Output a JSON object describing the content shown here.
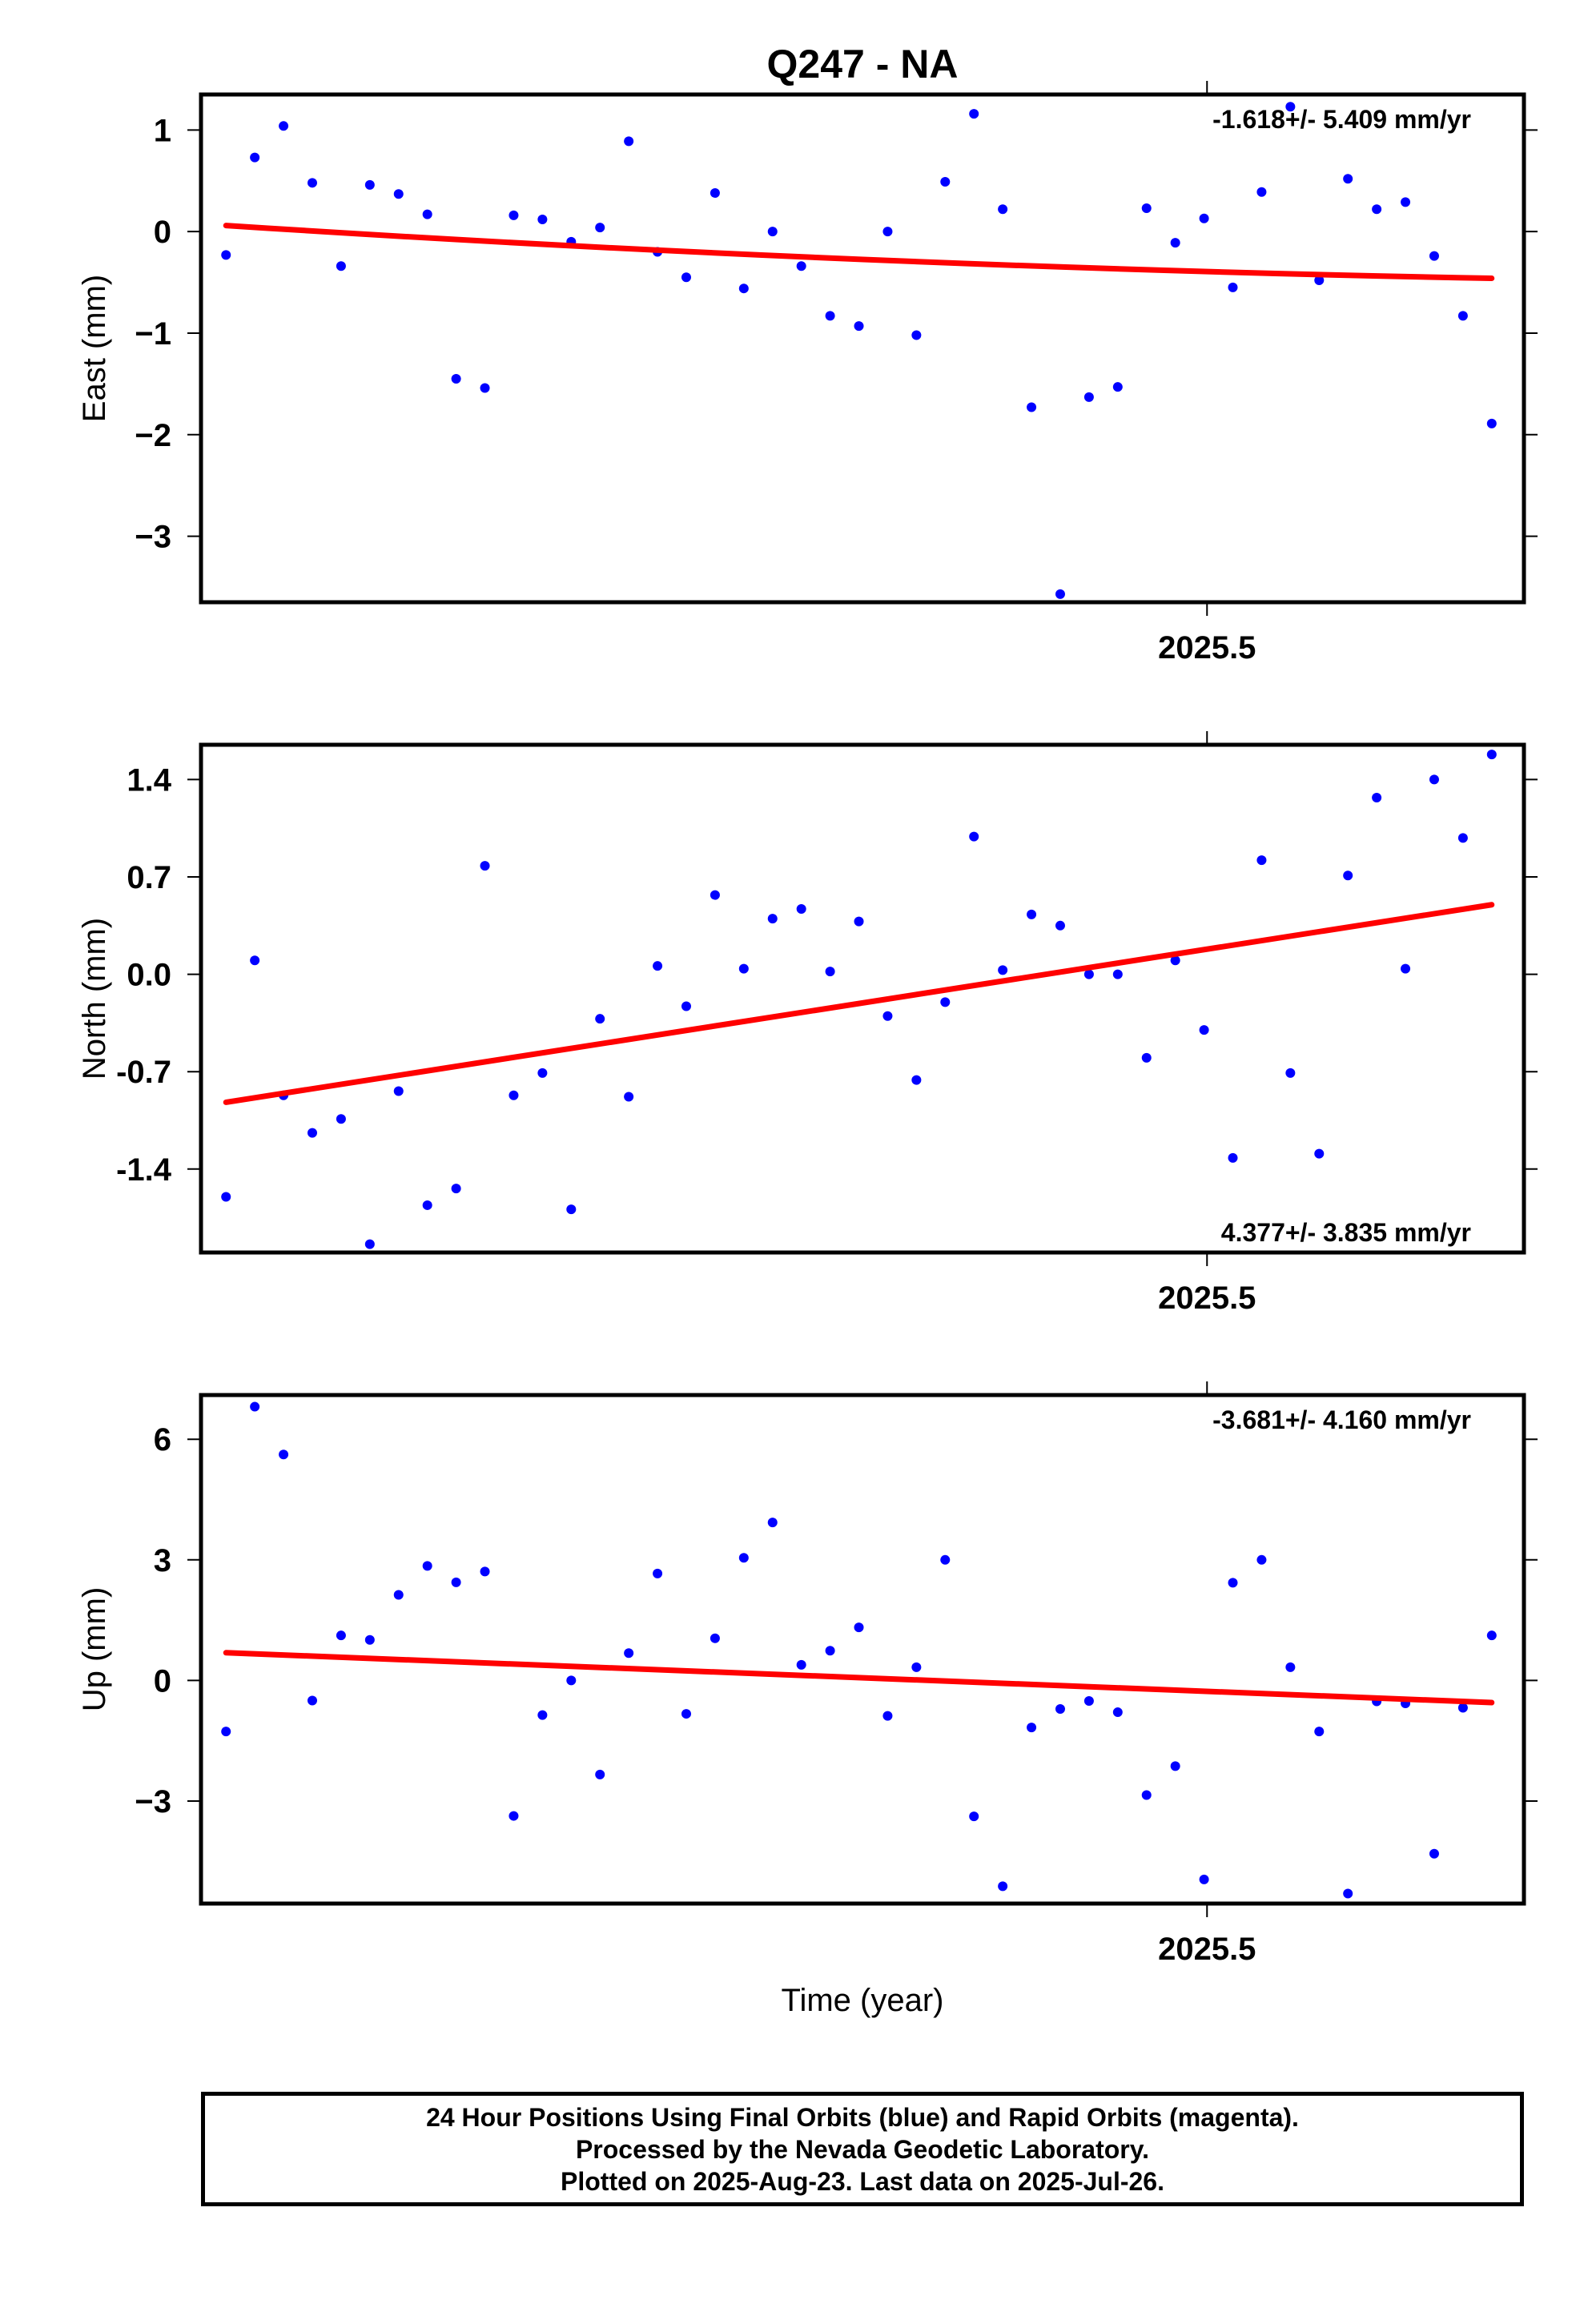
{
  "title": "Q247 - NA",
  "footer": {
    "line1": "24 Hour Positions Using Final Orbits (blue) and Rapid Orbits (magenta).",
    "line2": "Processed by the Nevada Geodetic Laboratory.",
    "line3": "Plotted on 2025-Aug-23. Last data on 2025-Jul-26."
  },
  "colors": {
    "points": "#0000ff",
    "trend": "#ff0000",
    "frame": "#000000"
  },
  "chart_data": [
    {
      "type": "scatter",
      "name": "east",
      "ylabel": "East (mm)",
      "xlabel": "",
      "rate_label": "-1.618+/- 5.409 mm/yr",
      "rate_position": "top-right",
      "xlim": [
        2025.2908,
        2025.5659
      ],
      "ylim": [
        -3.65,
        1.35
      ],
      "yticks": [
        1,
        0,
        -1,
        -2,
        -3
      ],
      "ytick_labels": [
        "1",
        "0",
        "−1",
        "−2",
        "−3"
      ],
      "xticks": [
        2025.5
      ],
      "xtick_labels": [
        "2025.5"
      ],
      "x_start": 2025.296,
      "x_step": 0.005982,
      "values": [
        -0.23,
        0.73,
        1.04,
        0.48,
        -0.34,
        0.46,
        0.37,
        0.17,
        -1.45,
        -1.54,
        0.16,
        0.12,
        -0.1,
        0.04,
        0.89,
        -0.2,
        -0.45,
        0.38,
        -0.56,
        0.0,
        -0.34,
        -0.83,
        -0.93,
        0.0,
        -1.02,
        0.49,
        1.16,
        0.22,
        -1.73,
        -3.57,
        -1.63,
        -1.53,
        0.23,
        -0.11,
        0.13,
        -0.55,
        0.39,
        1.23,
        -0.48,
        0.52,
        0.22,
        0.29,
        -0.24,
        -0.83,
        -1.89
      ],
      "trend": {
        "x": [
          2025.296,
          2025.5592
        ],
        "y": [
          0.06,
          -0.46
        ],
        "curved": true
      }
    },
    {
      "type": "scatter",
      "name": "north",
      "ylabel": "North (mm)",
      "xlabel": "",
      "rate_label": "4.377+/- 3.835 mm/yr",
      "rate_position": "bottom-right",
      "xlim": [
        2025.2908,
        2025.5659
      ],
      "ylim": [
        -2.0,
        1.65
      ],
      "yticks": [
        1.4,
        0.7,
        0.0,
        -0.7,
        -1.4
      ],
      "ytick_labels": [
        "1.4",
        "0.7",
        "0.0",
        "-0.7",
        "-1.4"
      ],
      "xticks": [
        2025.5
      ],
      "xtick_labels": [
        "2025.5"
      ],
      "x_start": 2025.296,
      "x_step": 0.005982,
      "values": [
        -1.6,
        0.1,
        -0.87,
        -1.14,
        -1.04,
        -1.94,
        -0.84,
        -1.66,
        -1.54,
        0.78,
        -0.87,
        -0.71,
        -1.69,
        -0.32,
        -0.88,
        0.06,
        -0.23,
        0.57,
        0.04,
        0.4,
        0.47,
        0.02,
        0.38,
        -0.3,
        -0.76,
        -0.2,
        0.99,
        0.03,
        0.43,
        0.35,
        0.0,
        0.0,
        -0.6,
        0.1,
        -0.4,
        -1.32,
        0.82,
        -0.71,
        -1.29,
        0.71,
        1.27,
        0.04,
        1.4,
        0.98,
        1.58
      ],
      "trend": {
        "x": [
          2025.296,
          2025.5592
        ],
        "y": [
          -0.92,
          0.5
        ],
        "curved": false
      }
    },
    {
      "type": "scatter",
      "name": "up",
      "ylabel": "Up (mm)",
      "xlabel": "Time (year)",
      "rate_label": "-3.681+/- 4.160 mm/yr",
      "rate_position": "top-right",
      "xlim": [
        2025.2908,
        2025.5659
      ],
      "ylim": [
        -5.55,
        7.1
      ],
      "yticks": [
        6,
        3,
        0,
        -3
      ],
      "ytick_labels": [
        "6",
        "3",
        "0",
        "−3"
      ],
      "xticks": [
        2025.5
      ],
      "xtick_labels": [
        "2025.5"
      ],
      "x_start": 2025.296,
      "x_step": 0.005982,
      "values": [
        -1.27,
        6.81,
        5.62,
        -0.5,
        1.12,
        1.01,
        2.13,
        2.85,
        2.44,
        2.71,
        -3.37,
        -0.86,
        0.0,
        -2.34,
        0.68,
        2.66,
        -0.83,
        1.05,
        3.05,
        3.93,
        0.39,
        0.74,
        1.32,
        -0.88,
        0.33,
        3.0,
        -3.38,
        -5.12,
        -1.17,
        -0.71,
        -0.51,
        -0.79,
        -2.85,
        -2.13,
        -4.95,
        2.43,
        3.0,
        0.33,
        -1.27,
        -5.3,
        -0.52,
        -0.57,
        -4.31,
        -0.68,
        1.12
      ],
      "trend": {
        "x": [
          2025.296,
          2025.5592
        ],
        "y": [
          0.69,
          -0.55
        ],
        "curved": false
      }
    }
  ]
}
